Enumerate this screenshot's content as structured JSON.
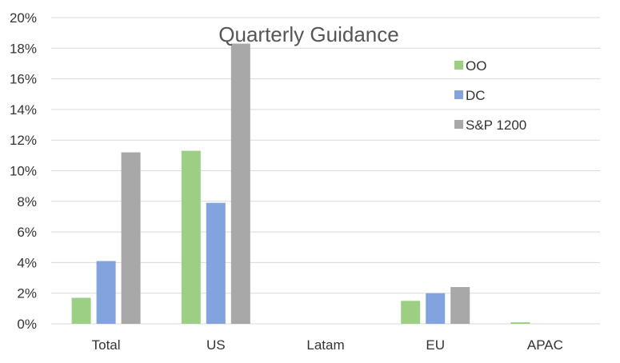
{
  "chart_data": {
    "type": "bar",
    "title": "Quarterly Guidance",
    "xlabel": "",
    "ylabel": "",
    "categories": [
      "Total",
      "US",
      "Latam",
      "EU",
      "APAC"
    ],
    "series": [
      {
        "name": "OO",
        "color": "#9ccf84",
        "values": [
          1.7,
          11.3,
          0.0,
          1.5,
          0.1
        ]
      },
      {
        "name": "DC",
        "color": "#82a3dd",
        "values": [
          4.1,
          7.9,
          0.0,
          2.0,
          0.0
        ]
      },
      {
        "name": "S&P 1200",
        "color": "#a8a8a8",
        "values": [
          11.2,
          18.3,
          0.0,
          2.4,
          0.0
        ]
      }
    ],
    "ylim": [
      0,
      20
    ],
    "y_ticks": [
      "0%",
      "2%",
      "4%",
      "6%",
      "8%",
      "10%",
      "12%",
      "14%",
      "16%",
      "18%",
      "20%"
    ],
    "y_tick_values": [
      0,
      2,
      4,
      6,
      8,
      10,
      12,
      14,
      16,
      18,
      20
    ],
    "grid": true,
    "legend_position": "top-right"
  }
}
